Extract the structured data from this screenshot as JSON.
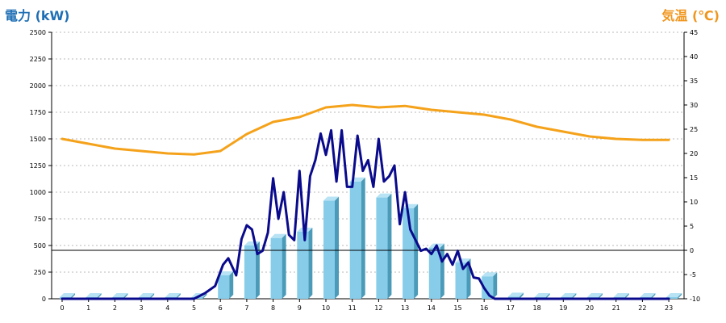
{
  "colors": {
    "left_title": "#1f6fb5",
    "right_title": "#f0961e",
    "bar_front": "#87cdea",
    "bar_side": "#4a9ab8",
    "bar_top": "#b8e3f4",
    "power_line": "#0a0a8c",
    "temp_line": "#f5a21b",
    "grid": "#b8b8b8"
  },
  "chart_data": {
    "type": "bar",
    "title": "",
    "left_axis_label": "電力 (kW)",
    "right_axis_label": "気温 (℃)",
    "x_ticks": [
      "0",
      "1",
      "2",
      "3",
      "4",
      "5",
      "6",
      "7",
      "8",
      "9",
      "10",
      "11",
      "12",
      "13",
      "14",
      "15",
      "16",
      "17",
      "18",
      "19",
      "20",
      "21",
      "22",
      "23"
    ],
    "y_left_ticks": [
      "0",
      "250",
      "500",
      "750",
      "1000",
      "1250",
      "1500",
      "1750",
      "2000",
      "2250",
      "2500"
    ],
    "y_right_ticks": [
      "-10",
      "-5",
      "0",
      "5",
      "10",
      "15",
      "20",
      "25",
      "30",
      "35",
      "40",
      "45"
    ],
    "ylim_left": [
      0,
      2500
    ],
    "ylim_right": [
      -10,
      45
    ],
    "grid": true,
    "zero_line_temperature": 0,
    "series": [
      {
        "name": "hourly_power",
        "type": "bar",
        "axis": "left",
        "x": [
          0,
          1,
          2,
          3,
          4,
          5,
          6,
          7,
          8,
          9,
          10,
          11,
          12,
          13,
          14,
          15,
          16,
          17,
          18,
          19,
          20,
          21,
          22,
          23
        ],
        "values": [
          10,
          10,
          10,
          10,
          10,
          10,
          220,
          500,
          570,
          630,
          920,
          1100,
          950,
          850,
          480,
          340,
          210,
          20,
          10,
          10,
          10,
          10,
          10,
          10
        ]
      },
      {
        "name": "power_detail",
        "type": "line",
        "axis": "left",
        "x": [
          0,
          5,
          5.4,
          5.8,
          6.1,
          6.3,
          6.6,
          6.8,
          7,
          7.2,
          7.4,
          7.6,
          7.8,
          8,
          8.2,
          8.4,
          8.6,
          8.8,
          9,
          9.2,
          9.4,
          9.6,
          9.8,
          10,
          10.2,
          10.4,
          10.6,
          10.8,
          11,
          11.2,
          11.4,
          11.6,
          11.8,
          12,
          12.2,
          12.4,
          12.6,
          12.8,
          13,
          13.2,
          13.4,
          13.6,
          13.8,
          14,
          14.2,
          14.4,
          14.6,
          14.8,
          15,
          15.2,
          15.4,
          15.6,
          15.8,
          16,
          16.2,
          16.4,
          16.6,
          16.8,
          17,
          23
        ],
        "values": [
          0,
          0,
          50,
          120,
          320,
          380,
          220,
          560,
          690,
          650,
          420,
          450,
          620,
          1130,
          750,
          1000,
          600,
          550,
          1200,
          550,
          1150,
          1300,
          1550,
          1350,
          1580,
          1100,
          1580,
          1050,
          1050,
          1530,
          1200,
          1300,
          1050,
          1500,
          1100,
          1150,
          1250,
          700,
          1000,
          650,
          550,
          450,
          470,
          420,
          500,
          350,
          420,
          320,
          450,
          280,
          340,
          200,
          190,
          100,
          30,
          0,
          0,
          0,
          0,
          0
        ]
      },
      {
        "name": "temperature",
        "type": "line",
        "axis": "right",
        "x": [
          0,
          1,
          2,
          3,
          4,
          5,
          6,
          7,
          8,
          9,
          10,
          11,
          12,
          13,
          14,
          15,
          16,
          17,
          18,
          19,
          20,
          21,
          22,
          23
        ],
        "values": [
          23,
          22,
          21,
          20.5,
          20,
          19.8,
          20.5,
          24,
          26.5,
          27.5,
          29.5,
          30,
          29.5,
          29.8,
          29,
          28.5,
          28,
          27,
          25.5,
          24.5,
          23.5,
          23,
          22.8,
          22.8
        ]
      }
    ]
  }
}
